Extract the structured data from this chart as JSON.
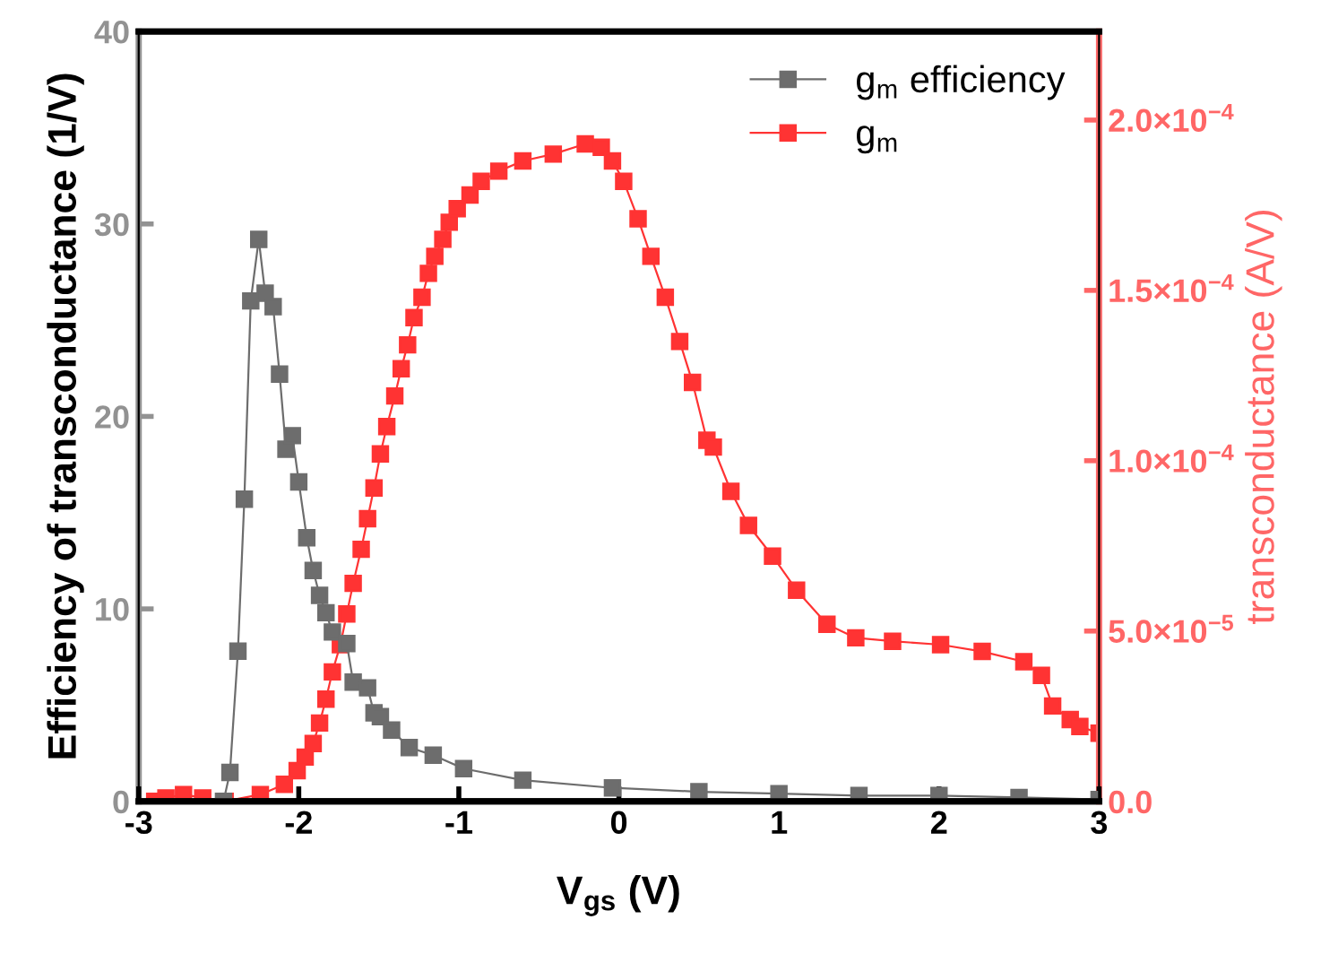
{
  "chart_data": {
    "type": "line",
    "xlabel": "V$_{gs}$ (V)",
    "ylabel": "Efficiency of transconductance (1/V)",
    "y2label": "transconductance (A/V)",
    "xlim": [
      -3,
      3
    ],
    "xticks": [
      -3,
      -2,
      -1,
      0,
      1,
      2,
      3
    ],
    "ylim": [
      0,
      40
    ],
    "yticks": [
      0,
      10,
      20,
      30,
      40
    ],
    "y2lim": [
      0,
      0.000226
    ],
    "y2ticks": [
      {
        "value": 0,
        "label": "0.0"
      },
      {
        "value": 5e-05,
        "label": "5.0×10$^{−5}$"
      },
      {
        "value": 0.0001,
        "label": "1.0×10$^{−4}$"
      },
      {
        "value": 0.00015,
        "label": "1.5×10$^{−4}$"
      },
      {
        "value": 0.0002,
        "label": "2.0×10$^{−4}$"
      }
    ],
    "marker": "square",
    "line_style": "solid",
    "grid": false,
    "legend": "top right",
    "series": [
      {
        "name": "g$_{m}$ efficiency",
        "color": "#6d6d6d",
        "x": [
          -2.47,
          -2.43,
          -2.38,
          -2.34,
          -2.3,
          -2.25,
          -2.21,
          -2.16,
          -2.12,
          -2.08,
          -2.04,
          -2.0,
          -1.95,
          -1.91,
          -1.87,
          -1.83,
          -1.79,
          -1.7,
          -1.66,
          -1.57,
          -1.53,
          -1.49,
          -1.42,
          -1.31,
          -1.16,
          -0.97,
          -0.6,
          -0.04,
          0.5,
          1.0,
          1.5,
          2.0,
          2.5,
          3.0
        ],
        "values": [
          0,
          1.5,
          7.8,
          15.7,
          26.0,
          29.2,
          26.4,
          25.7,
          22.2,
          18.3,
          19.0,
          16.6,
          13.7,
          12.0,
          10.7,
          9.8,
          8.8,
          8.2,
          6.2,
          5.9,
          4.6,
          4.4,
          3.7,
          2.8,
          2.4,
          1.7,
          1.1,
          0.7,
          0.5,
          0.4,
          0.3,
          0.3,
          0.2,
          0.1
        ]
      },
      {
        "name": "g$_{m}$",
        "color": "#ff3333",
        "axis": "y2",
        "x": [
          -2.9,
          -2.83,
          -2.72,
          -2.6,
          -2.46,
          -2.24,
          -2.09,
          -2.01,
          -1.96,
          -1.91,
          -1.87,
          -1.83,
          -1.79,
          -1.74,
          -1.7,
          -1.66,
          -1.61,
          -1.57,
          -1.53,
          -1.49,
          -1.45,
          -1.4,
          -1.36,
          -1.32,
          -1.28,
          -1.23,
          -1.19,
          -1.15,
          -1.1,
          -1.06,
          -1.01,
          -0.93,
          -0.86,
          -0.75,
          -0.6,
          -0.41,
          -0.21,
          -0.11,
          -0.04,
          0.03,
          0.12,
          0.2,
          0.29,
          0.38,
          0.46,
          0.55,
          0.59,
          0.7,
          0.81,
          0.96,
          1.11,
          1.3,
          1.48,
          1.71,
          2.01,
          2.27,
          2.53,
          2.64,
          2.71,
          2.82,
          2.88,
          3.0
        ],
        "values": [
          0,
          1e-06,
          2e-06,
          1e-06,
          0,
          2e-06,
          5e-06,
          9e-06,
          1.3e-05,
          1.7e-05,
          2.3e-05,
          3e-05,
          3.8e-05,
          4.6e-05,
          5.5e-05,
          6.4e-05,
          7.4e-05,
          8.3e-05,
          9.2e-05,
          0.000102,
          0.00011,
          0.000119,
          0.000127,
          0.000134,
          0.000142,
          0.000148,
          0.000155,
          0.00016,
          0.000165,
          0.00017,
          0.000174,
          0.000178,
          0.000182,
          0.000185,
          0.000188,
          0.00019,
          0.000193,
          0.000192,
          0.000188,
          0.000182,
          0.000171,
          0.00016,
          0.000148,
          0.000135,
          0.000123,
          0.000106,
          0.000104,
          9.1e-05,
          8.1e-05,
          7.2e-05,
          6.2e-05,
          5.2e-05,
          4.8e-05,
          4.7e-05,
          4.6e-05,
          4.4e-05,
          4.1e-05,
          3.7e-05,
          2.8e-05,
          2.4e-05,
          2.2e-05,
          2e-05
        ]
      }
    ]
  }
}
